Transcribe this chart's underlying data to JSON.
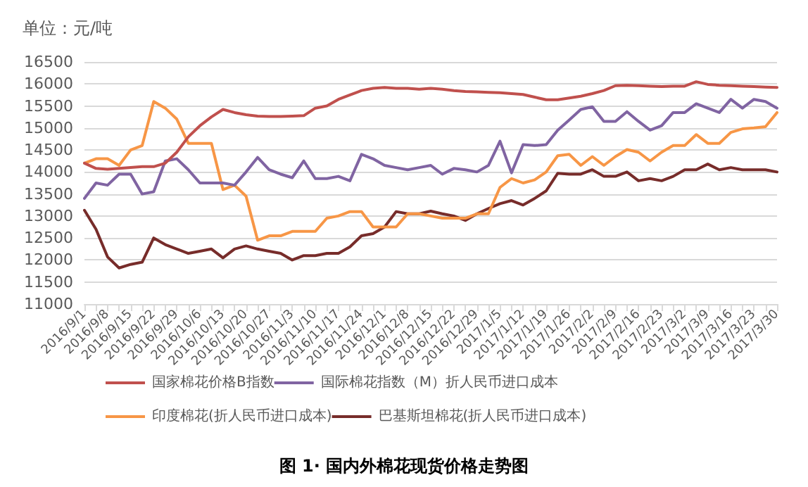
{
  "chart_data": {
    "type": "line",
    "title": "图 1· 国内外棉花现货价格走势图",
    "ylabel": "单位：元/吨",
    "categories": [
      "2016/9/1",
      null,
      "2016/9/8",
      null,
      "2016/9/15",
      null,
      "2016/9/22",
      null,
      "2016/9/29",
      null,
      "2016/10/6",
      null,
      "2016/10/13",
      null,
      "2016/10/20",
      null,
      "2016/10/27",
      null,
      "2016/11/3",
      null,
      "2016/11/10",
      null,
      "2016/11/17",
      null,
      "2016/11/24",
      null,
      "2016/12/1",
      null,
      "2016/12/8",
      null,
      "2016/12/15",
      null,
      "2016/12/22",
      null,
      "2016/12/29",
      null,
      "2017/1/5",
      null,
      "2017/1/12",
      null,
      "2017/1/19",
      null,
      "2017/1/26",
      null,
      "2017/2/2",
      null,
      "2017/2/9",
      null,
      "2017/2/16",
      null,
      "2017/2/23",
      null,
      "2017/3/2",
      null,
      "2017/3/9",
      null,
      "2017/3/16",
      null,
      "2017/3/23",
      null,
      "2017/3/30"
    ],
    "series": [
      {
        "name": "国家棉花价格B指数",
        "color": "#c0504d",
        "values": [
          14200,
          14080,
          14060,
          14080,
          14100,
          14120,
          14120,
          14200,
          14450,
          14800,
          15050,
          15250,
          15420,
          15350,
          15300,
          15270,
          15260,
          15260,
          15270,
          15280,
          15450,
          15500,
          15650,
          15750,
          15850,
          15900,
          15920,
          15900,
          15900,
          15880,
          15900,
          15880,
          15850,
          15830,
          15820,
          15810,
          15800,
          15780,
          15760,
          15700,
          15640,
          15640,
          15680,
          15720,
          15780,
          15850,
          15960,
          15970,
          15960,
          15950,
          15940,
          15950,
          15950,
          16050,
          15990,
          15970,
          15960,
          15950,
          15940,
          15930,
          15920
        ]
      },
      {
        "name": "国际棉花指数（M）折人民币进口成本",
        "color": "#8064a2",
        "values": [
          13400,
          13750,
          13700,
          13950,
          13950,
          13500,
          13550,
          14250,
          14300,
          14050,
          13750,
          13750,
          13750,
          13700,
          14000,
          14330,
          14050,
          13950,
          13870,
          14250,
          13850,
          13850,
          13900,
          13800,
          14400,
          14300,
          14150,
          14100,
          14050,
          14100,
          14150,
          13950,
          14080,
          14050,
          14000,
          14150,
          14700,
          13980,
          14620,
          14600,
          14620,
          14950,
          15180,
          15420,
          15480,
          15150,
          15150,
          15370,
          15150,
          14950,
          15050,
          15350,
          15350,
          15550,
          15450,
          15350,
          15650,
          15450,
          15650,
          15600,
          15450
        ]
      },
      {
        "name": "印度棉花(折人民币进口成本)",
        "color": "#f79646",
        "values": [
          14200,
          14300,
          14300,
          14150,
          14500,
          14600,
          15600,
          15450,
          15200,
          14650,
          14650,
          14650,
          13600,
          13700,
          13450,
          12450,
          12550,
          12550,
          12650,
          12650,
          12650,
          12950,
          13000,
          13100,
          13100,
          12750,
          12750,
          12750,
          13050,
          13050,
          13000,
          12950,
          12950,
          12950,
          13050,
          13050,
          13650,
          13850,
          13750,
          13820,
          14000,
          14370,
          14400,
          14150,
          14350,
          14150,
          14350,
          14510,
          14450,
          14250,
          14450,
          14600,
          14600,
          14850,
          14650,
          14650,
          14900,
          14980,
          15000,
          15030,
          15350
        ]
      },
      {
        "name": "巴基斯坦棉花(折人民币进口成本)",
        "color": "#772c2a",
        "values": [
          13130,
          12700,
          12070,
          11820,
          11900,
          11950,
          12500,
          12350,
          12250,
          12150,
          12200,
          12250,
          12050,
          12250,
          12320,
          12250,
          12200,
          12150,
          12000,
          12100,
          12100,
          12150,
          12150,
          12300,
          12550,
          12600,
          12750,
          13100,
          13050,
          13050,
          13110,
          13050,
          13000,
          12900,
          13050,
          13170,
          13280,
          13350,
          13250,
          13400,
          13570,
          13970,
          13950,
          13950,
          14050,
          13900,
          13900,
          14000,
          13800,
          13850,
          13800,
          13900,
          14050,
          14050,
          14180,
          14050,
          14100,
          14050,
          14050,
          14050,
          14000
        ]
      }
    ],
    "ylim": [
      11000,
      16500
    ],
    "yticks": [
      11000,
      11500,
      12000,
      12500,
      13000,
      13500,
      14000,
      14500,
      15000,
      15500,
      16000,
      16500
    ],
    "grid": "y",
    "legend": "bottom",
    "marker": "none",
    "line_style": "solid"
  }
}
